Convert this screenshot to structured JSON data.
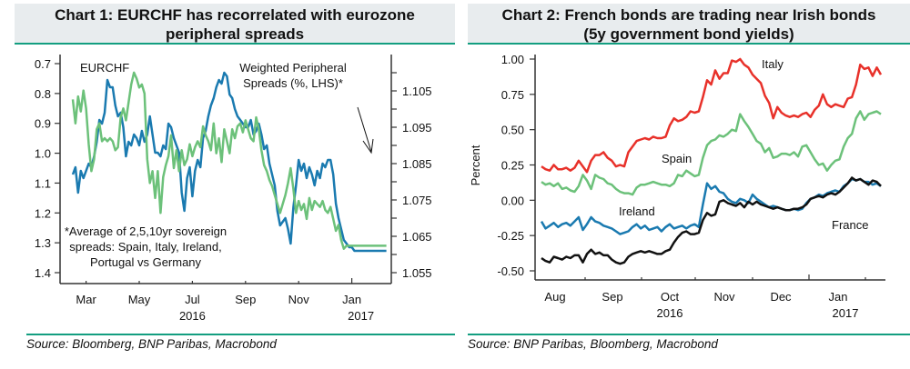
{
  "charts": [
    {
      "title_line1": "Chart 1: EURCHF has recorrelated with eurozone",
      "title_line2": "peripheral spreads",
      "source": "Source: Bloomberg, BNP Paribas, Macrobond"
    },
    {
      "title_line1": "Chart 2: French bonds are trading near Irish bonds",
      "title_line2": "(5y government bond yields)",
      "source": "Source: BNP Paribas, Bloomberg, Macrobond"
    }
  ],
  "chart_data": [
    {
      "type": "line",
      "title": "Chart 1: EURCHF has recorrelated with eurozone peripheral spreads",
      "xlabel": "",
      "x_ticks": [
        "Mar",
        "May",
        "Jul",
        "Sep",
        "Nov",
        "Jan"
      ],
      "x_year_labels": [
        {
          "label": "2016",
          "under": "Jul"
        },
        {
          "label": "2017",
          "under": "Jan"
        }
      ],
      "x_range": [
        "2016-02-15",
        "2017-02-10"
      ],
      "left_axis": {
        "label": "Weighted Peripheral Spreads (%, LHS)*",
        "inverted": true,
        "ylim": [
          0.7,
          1.4
        ],
        "ticks": [
          "0.7",
          "0.8",
          "0.9",
          "1.0",
          "1.1",
          "1.2",
          "1.3",
          "1.4"
        ]
      },
      "right_axis": {
        "label": "EURCHF",
        "ylim": [
          1.055,
          1.116
        ],
        "ticks": [
          "1.105",
          "1.095",
          "1.085",
          "1.075",
          "1.065",
          "1.055"
        ]
      },
      "annotations": [
        "EURCHF",
        "Weighted Peripheral",
        "Spreads (%, LHS)*",
        "*Average of 2,5,10yr sovereign",
        "spreads: Spain, Italy, Ireland,",
        "Portugal vs Germany"
      ],
      "series": [
        {
          "name": "EURCHF",
          "axis": "right",
          "color": "#1a7ab0",
          "x_month_offset": [
            0,
            0.1,
            0.2,
            0.3,
            0.4,
            0.5,
            0.6,
            0.7,
            0.8,
            0.9,
            1.0,
            1.1,
            1.2,
            1.3,
            1.4,
            1.5,
            1.6,
            1.7,
            1.8,
            1.9,
            2.0,
            2.1,
            2.2,
            2.3,
            2.4,
            2.5,
            2.6,
            2.7,
            2.8,
            2.9,
            3.0,
            3.1,
            3.2,
            3.3,
            3.4,
            3.5,
            3.6,
            3.7,
            3.8,
            3.9,
            4.0,
            4.1,
            4.2,
            4.3,
            4.4,
            4.5,
            4.6,
            4.7,
            4.8,
            4.9,
            5.0,
            5.1,
            5.2,
            5.3,
            5.4,
            5.5,
            5.6,
            5.7,
            5.8,
            5.9,
            6.0,
            6.1,
            6.2,
            6.3,
            6.4,
            6.5,
            6.6,
            6.7,
            6.8,
            6.9,
            7.0,
            7.1,
            7.2,
            7.3,
            7.4,
            7.5,
            7.6,
            7.7,
            7.8,
            7.9,
            8.0,
            8.1,
            8.2,
            8.3,
            8.4,
            8.5,
            8.6,
            8.7,
            8.8,
            8.9,
            9.0,
            9.1,
            9.2,
            9.3,
            9.4,
            9.5,
            9.6,
            9.7,
            9.8,
            9.9,
            10.0,
            10.1,
            10.2,
            10.3,
            10.4,
            10.5,
            10.6,
            10.7,
            10.8,
            10.9,
            11.0,
            11.1,
            11.2,
            11.3,
            11.4,
            11.5,
            11.6,
            11.7,
            11.8
          ],
          "values": [
            1.082,
            1.084,
            1.077,
            1.083,
            1.081,
            1.083,
            1.085,
            1.084,
            1.087,
            1.091,
            1.097,
            1.096,
            1.099,
            1.108,
            1.106,
            1.106,
            1.101,
            1.098,
            1.099,
            1.095,
            1.087,
            1.091,
            1.09,
            1.093,
            1.092,
            1.09,
            1.094,
            1.091,
            1.093,
            1.098,
            1.093,
            1.088,
            1.088,
            1.087,
            1.09,
            1.089,
            1.096,
            1.095,
            1.092,
            1.09,
            1.088,
            1.077,
            1.072,
            1.081,
            1.084,
            1.076,
            1.083,
            1.086,
            1.084,
            1.092,
            1.094,
            1.098,
            1.101,
            1.103,
            1.106,
            1.108,
            1.107,
            1.11,
            1.109,
            1.104,
            1.103,
            1.1,
            1.098,
            1.097,
            1.096,
            1.095,
            1.095,
            1.097,
            1.093,
            1.094,
            1.096,
            1.093,
            1.089,
            1.09,
            1.085,
            1.082,
            1.079,
            1.072,
            1.068,
            1.069,
            1.07,
            1.067,
            1.063,
            1.073,
            1.079,
            1.086,
            1.083,
            1.085,
            1.081,
            1.084,
            1.082,
            1.079,
            1.083,
            1.081,
            1.085,
            1.084,
            1.086,
            1.086,
            1.082,
            1.074,
            1.07,
            1.067,
            1.064,
            1.063,
            1.062,
            1.062,
            1.061,
            1.061,
            1.061,
            1.061,
            1.061,
            1.061,
            1.061,
            1.061,
            1.061,
            1.061,
            1.061,
            1.061,
            1.061
          ]
        },
        {
          "name": "Weighted Peripheral Spreads",
          "axis": "left",
          "color": "#6cc17a",
          "x_month_offset": [
            0,
            0.1,
            0.2,
            0.3,
            0.4,
            0.5,
            0.6,
            0.7,
            0.8,
            0.9,
            1.0,
            1.1,
            1.2,
            1.3,
            1.4,
            1.5,
            1.6,
            1.7,
            1.8,
            1.9,
            2.0,
            2.1,
            2.2,
            2.3,
            2.4,
            2.5,
            2.6,
            2.7,
            2.8,
            2.9,
            3.0,
            3.1,
            3.2,
            3.3,
            3.4,
            3.5,
            3.6,
            3.7,
            3.8,
            3.9,
            4.0,
            4.1,
            4.2,
            4.3,
            4.4,
            4.5,
            4.6,
            4.7,
            4.8,
            4.9,
            5.0,
            5.1,
            5.2,
            5.3,
            5.4,
            5.5,
            5.6,
            5.7,
            5.8,
            5.9,
            6.0,
            6.1,
            6.2,
            6.3,
            6.4,
            6.5,
            6.6,
            6.7,
            6.8,
            6.9,
            7.0,
            7.1,
            7.2,
            7.3,
            7.4,
            7.5,
            7.6,
            7.7,
            7.8,
            7.9,
            8.0,
            8.1,
            8.2,
            8.3,
            8.4,
            8.5,
            8.6,
            8.7,
            8.8,
            8.9,
            9.0,
            9.1,
            9.2,
            9.3,
            9.4,
            9.5,
            9.6,
            9.7,
            9.8,
            9.9,
            10.0,
            10.1,
            10.2,
            10.3,
            10.4,
            10.5,
            10.6,
            10.7,
            10.8,
            10.9,
            11.0,
            11.1,
            11.2,
            11.3,
            11.4,
            11.5,
            11.6,
            11.7,
            11.8
          ],
          "values": [
            0.82,
            0.9,
            0.81,
            0.86,
            0.79,
            0.85,
            0.97,
            1.06,
            1.02,
            0.92,
            0.9,
            0.96,
            0.95,
            0.96,
            0.95,
            0.96,
            0.99,
            0.98,
            0.88,
            0.85,
            0.89,
            0.83,
            0.77,
            0.73,
            0.75,
            0.78,
            0.77,
            0.8,
            1.02,
            1.1,
            1.06,
            1.15,
            1.06,
            1.2,
            1.08,
            1.04,
            1.01,
            0.94,
            1.05,
            0.99,
            1.06,
            0.99,
            1.04,
            1.02,
            0.97,
            1.01,
            0.98,
            0.96,
            0.98,
            0.91,
            0.94,
            0.96,
            0.99,
            0.9,
            1.0,
            0.95,
            1.03,
            0.92,
            0.96,
            1.0,
            0.92,
            0.95,
            0.91,
            0.9,
            0.93,
            0.89,
            0.92,
            0.95,
            0.96,
            0.88,
            0.92,
            0.99,
            1.04,
            1.06,
            1.09,
            1.11,
            1.14,
            1.17,
            1.2,
            1.17,
            1.14,
            1.1,
            1.05,
            1.12,
            1.2,
            1.16,
            1.19,
            1.17,
            1.22,
            1.15,
            1.19,
            1.16,
            1.17,
            1.18,
            1.16,
            1.19,
            1.2,
            1.18,
            1.22,
            1.26,
            1.24,
            1.29,
            1.32,
            1.31,
            1.31,
            1.31,
            1.31,
            1.31,
            1.31,
            1.31,
            1.31,
            1.31,
            1.31,
            1.31,
            1.31,
            1.31,
            1.31,
            1.31,
            1.31
          ]
        }
      ]
    },
    {
      "type": "line",
      "title": "Chart 2: French bonds are trading near Irish bonds (5y government bond yields)",
      "ylabel": "Percent",
      "ylim": [
        -0.55,
        1.05
      ],
      "y_ticks": [
        "1.00",
        "0.75",
        "0.50",
        "0.25",
        "0.00",
        "-0.25",
        "-0.50"
      ],
      "x_ticks": [
        "Aug",
        "Sep",
        "Oct",
        "Nov",
        "Dec",
        "Jan"
      ],
      "x_year_labels": [
        {
          "label": "2016",
          "under": "Oct"
        },
        {
          "label": "2017",
          "under": "Jan"
        }
      ],
      "x_range": [
        "2016-07-20",
        "2017-01-31"
      ],
      "series": [
        {
          "name": "Italy",
          "color": "#e8312a",
          "values": [
            0.24,
            0.22,
            0.21,
            0.25,
            0.22,
            0.22,
            0.23,
            0.21,
            0.23,
            0.28,
            0.24,
            0.2,
            0.28,
            0.32,
            0.32,
            0.34,
            0.3,
            0.28,
            0.24,
            0.25,
            0.24,
            0.34,
            0.38,
            0.42,
            0.43,
            0.44,
            0.43,
            0.45,
            0.44,
            0.44,
            0.45,
            0.53,
            0.58,
            0.56,
            0.57,
            0.59,
            0.63,
            0.62,
            0.63,
            0.73,
            0.85,
            0.82,
            0.92,
            0.86,
            0.9,
            0.9,
            0.99,
            0.98,
            1.0,
            0.96,
            0.94,
            0.89,
            0.86,
            0.83,
            0.74,
            0.69,
            0.58,
            0.66,
            0.62,
            0.6,
            0.59,
            0.6,
            0.59,
            0.61,
            0.62,
            0.59,
            0.64,
            0.67,
            0.75,
            0.68,
            0.66,
            0.68,
            0.67,
            0.66,
            0.72,
            0.73,
            0.82,
            0.96,
            0.93,
            0.94,
            0.88,
            0.94,
            0.89
          ]
        },
        {
          "name": "Spain",
          "color": "#6cc17a",
          "values": [
            0.13,
            0.11,
            0.12,
            0.1,
            0.12,
            0.08,
            0.09,
            0.07,
            0.06,
            0.1,
            0.18,
            0.14,
            0.08,
            0.18,
            0.16,
            0.15,
            0.12,
            0.11,
            0.08,
            0.06,
            0.05,
            0.05,
            0.04,
            0.09,
            0.11,
            0.11,
            0.12,
            0.13,
            0.12,
            0.11,
            0.11,
            0.1,
            0.12,
            0.18,
            0.17,
            0.21,
            0.19,
            0.17,
            0.18,
            0.3,
            0.39,
            0.42,
            0.43,
            0.46,
            0.45,
            0.47,
            0.5,
            0.49,
            0.61,
            0.56,
            0.52,
            0.47,
            0.42,
            0.4,
            0.34,
            0.37,
            0.3,
            0.31,
            0.33,
            0.33,
            0.32,
            0.34,
            0.31,
            0.38,
            0.39,
            0.34,
            0.29,
            0.25,
            0.26,
            0.21,
            0.25,
            0.28,
            0.29,
            0.38,
            0.44,
            0.47,
            0.58,
            0.63,
            0.57,
            0.61,
            0.62,
            0.63,
            0.61
          ]
        },
        {
          "name": "Ireland",
          "color": "#1a7ab0",
          "values": [
            -0.15,
            -0.2,
            -0.18,
            -0.16,
            -0.19,
            -0.17,
            -0.16,
            -0.18,
            -0.15,
            -0.12,
            -0.21,
            -0.17,
            -0.12,
            -0.15,
            -0.16,
            -0.18,
            -0.19,
            -0.2,
            -0.22,
            -0.24,
            -0.23,
            -0.22,
            -0.19,
            -0.17,
            -0.2,
            -0.18,
            -0.21,
            -0.2,
            -0.19,
            -0.22,
            -0.19,
            -0.17,
            -0.2,
            -0.19,
            -0.18,
            -0.2,
            -0.18,
            -0.17,
            -0.19,
            -0.03,
            0.12,
            0.08,
            0.1,
            0.06,
            0.05,
            0.01,
            -0.01,
            -0.02,
            0.01,
            0.0,
            -0.02,
            0.04,
            0.01,
            -0.01,
            -0.03,
            -0.05,
            -0.04,
            -0.05,
            -0.06,
            -0.07,
            -0.07,
            -0.06,
            -0.07,
            -0.06,
            -0.02,
            0.01,
            0.02,
            0.04,
            0.03,
            0.05,
            0.06,
            0.07,
            0.06,
            0.1,
            0.12,
            0.15,
            0.14,
            0.15,
            0.13,
            0.13,
            0.11,
            0.12,
            0.1
          ]
        },
        {
          "name": "France",
          "color": "#111111",
          "values": [
            -0.41,
            -0.43,
            -0.44,
            -0.4,
            -0.41,
            -0.42,
            -0.4,
            -0.41,
            -0.39,
            -0.39,
            -0.44,
            -0.38,
            -0.35,
            -0.38,
            -0.37,
            -0.39,
            -0.39,
            -0.42,
            -0.44,
            -0.45,
            -0.44,
            -0.4,
            -0.38,
            -0.37,
            -0.36,
            -0.37,
            -0.36,
            -0.37,
            -0.38,
            -0.38,
            -0.36,
            -0.35,
            -0.3,
            -0.26,
            -0.23,
            -0.22,
            -0.24,
            -0.24,
            -0.23,
            -0.14,
            -0.09,
            -0.11,
            -0.1,
            -0.01,
            0.0,
            -0.02,
            -0.03,
            -0.04,
            -0.02,
            -0.05,
            -0.01,
            -0.03,
            -0.01,
            -0.03,
            -0.04,
            -0.05,
            -0.06,
            -0.05,
            -0.06,
            -0.07,
            -0.07,
            -0.06,
            -0.06,
            -0.05,
            -0.03,
            0.01,
            0.02,
            0.03,
            0.02,
            0.04,
            0.05,
            0.04,
            0.06,
            0.09,
            0.12,
            0.16,
            0.14,
            0.15,
            0.13,
            0.11,
            0.14,
            0.13,
            0.1
          ]
        }
      ],
      "labels": [
        "Italy",
        "Spain",
        "Ireland",
        "France"
      ]
    }
  ]
}
